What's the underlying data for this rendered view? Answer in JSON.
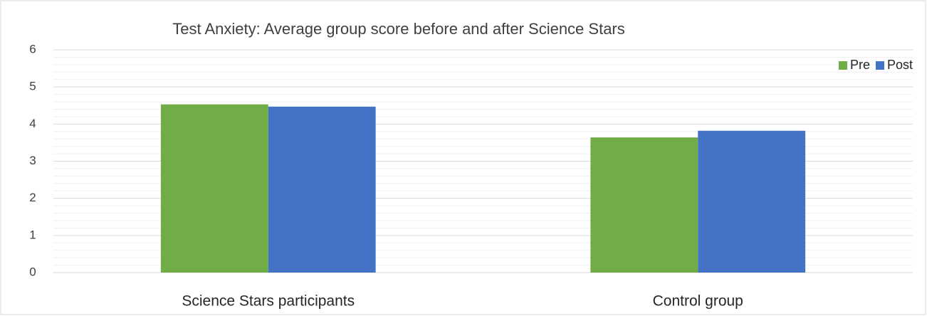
{
  "chart_data": {
    "type": "bar",
    "title": "Test Anxiety: Average group score before and after Science Stars",
    "categories": [
      "Science Stars participants",
      "Control group"
    ],
    "series": [
      {
        "name": "Pre",
        "color": "#70ad47",
        "values": [
          4.53,
          3.64
        ]
      },
      {
        "name": "Post",
        "color": "#4472c4",
        "values": [
          4.47,
          3.82
        ]
      }
    ],
    "ylim": [
      0,
      6
    ],
    "yticks": [
      0,
      1,
      2,
      3,
      4,
      5,
      6
    ],
    "grid": true,
    "minor_grid_divisions": 5,
    "legend": "top-right"
  }
}
